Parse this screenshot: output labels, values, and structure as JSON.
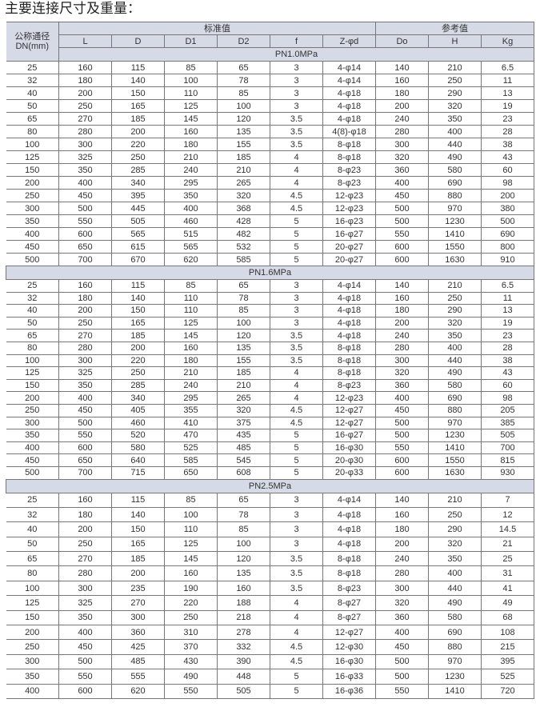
{
  "title": "主要连接尺寸及重量：",
  "header": {
    "dn_label": "公称通径 DN(mm)",
    "group_standard": "标准值",
    "group_reference": "参考值",
    "columns": [
      "L",
      "D",
      "D1",
      "D2",
      "f",
      "Z-φd",
      "Do",
      "H",
      "Kg"
    ]
  },
  "sections": [
    {
      "label": "PN1.0MPa",
      "rows": [
        [
          "25",
          "160",
          "115",
          "85",
          "65",
          "3",
          "4-φ14",
          "140",
          "210",
          "6.5"
        ],
        [
          "32",
          "180",
          "140",
          "100",
          "78",
          "3",
          "4-φ14",
          "160",
          "250",
          "11"
        ],
        [
          "40",
          "200",
          "150",
          "110",
          "85",
          "3",
          "4-φ18",
          "180",
          "290",
          "13"
        ],
        [
          "50",
          "250",
          "165",
          "125",
          "100",
          "3",
          "4-φ18",
          "200",
          "320",
          "19"
        ],
        [
          "65",
          "270",
          "185",
          "145",
          "120",
          "3.5",
          "4-φ18",
          "240",
          "350",
          "23"
        ],
        [
          "80",
          "280",
          "200",
          "160",
          "135",
          "3.5",
          "4(8)-φ18",
          "280",
          "400",
          "28"
        ],
        [
          "100",
          "300",
          "220",
          "180",
          "155",
          "3.5",
          "8-φ18",
          "300",
          "440",
          "38"
        ],
        [
          "125",
          "325",
          "250",
          "210",
          "185",
          "4",
          "8-φ18",
          "320",
          "490",
          "43"
        ],
        [
          "150",
          "350",
          "285",
          "240",
          "210",
          "4",
          "8-φ23",
          "360",
          "580",
          "60"
        ],
        [
          "200",
          "400",
          "340",
          "295",
          "265",
          "4",
          "8-φ23",
          "400",
          "690",
          "98"
        ],
        [
          "250",
          "450",
          "395",
          "350",
          "320",
          "4.5",
          "12-φ23",
          "450",
          "880",
          "200"
        ],
        [
          "300",
          "500",
          "445",
          "400",
          "368",
          "4.5",
          "12-φ23",
          "500",
          "970",
          "380"
        ],
        [
          "350",
          "550",
          "505",
          "460",
          "428",
          "5",
          "16-φ23",
          "500",
          "1230",
          "500"
        ],
        [
          "400",
          "600",
          "565",
          "515",
          "482",
          "5",
          "16-φ27",
          "550",
          "1410",
          "690"
        ],
        [
          "450",
          "650",
          "615",
          "565",
          "532",
          "5",
          "20-φ27",
          "600",
          "1550",
          "800"
        ],
        [
          "500",
          "700",
          "670",
          "620",
          "585",
          "5",
          "20-φ27",
          "600",
          "1630",
          "910"
        ]
      ]
    },
    {
      "label": "PN1.6MPa",
      "rows": [
        [
          "25",
          "160",
          "115",
          "85",
          "65",
          "3",
          "4-φ14",
          "140",
          "210",
          "6.5"
        ],
        [
          "32",
          "180",
          "140",
          "110",
          "78",
          "3",
          "4-φ18",
          "160",
          "250",
          "11"
        ],
        [
          "40",
          "200",
          "150",
          "110",
          "85",
          "3",
          "4-φ18",
          "180",
          "290",
          "13"
        ],
        [
          "50",
          "250",
          "165",
          "125",
          "100",
          "3",
          "4-φ18",
          "200",
          "320",
          "19"
        ],
        [
          "65",
          "270",
          "185",
          "145",
          "120",
          "3.5",
          "4-φ18",
          "240",
          "350",
          "23"
        ],
        [
          "80",
          "280",
          "200",
          "160",
          "135",
          "3.5",
          "8-φ18",
          "280",
          "400",
          "28"
        ],
        [
          "100",
          "300",
          "220",
          "180",
          "155",
          "3.5",
          "8-φ18",
          "300",
          "440",
          "38"
        ],
        [
          "125",
          "325",
          "250",
          "210",
          "185",
          "4",
          "8-φ18",
          "320",
          "490",
          "43"
        ],
        [
          "150",
          "350",
          "285",
          "240",
          "210",
          "4",
          "8-φ23",
          "360",
          "580",
          "60"
        ],
        [
          "200",
          "400",
          "340",
          "295",
          "265",
          "4",
          "12-φ23",
          "400",
          "690",
          "98"
        ],
        [
          "250",
          "450",
          "405",
          "355",
          "320",
          "4.5",
          "12-φ27",
          "450",
          "880",
          "205"
        ],
        [
          "300",
          "500",
          "460",
          "410",
          "375",
          "4.5",
          "12-φ27",
          "500",
          "970",
          "385"
        ],
        [
          "350",
          "550",
          "520",
          "470",
          "435",
          "5",
          "16-φ27",
          "500",
          "1230",
          "505"
        ],
        [
          "400",
          "600",
          "580",
          "525",
          "485",
          "5",
          "16-φ30",
          "550",
          "1410",
          "700"
        ],
        [
          "450",
          "650",
          "640",
          "585",
          "545",
          "5",
          "20-φ30",
          "600",
          "1550",
          "815"
        ],
        [
          "500",
          "700",
          "715",
          "650",
          "608",
          "5",
          "20-φ33",
          "600",
          "1630",
          "930"
        ]
      ]
    },
    {
      "label": "PN2.5MPa",
      "rows": [
        [
          "25",
          "160",
          "115",
          "85",
          "65",
          "3",
          "4-φ14",
          "140",
          "210",
          "7"
        ],
        [
          "32",
          "180",
          "140",
          "100",
          "78",
          "3",
          "4-φ18",
          "160",
          "250",
          "12"
        ],
        [
          "40",
          "200",
          "150",
          "110",
          "85",
          "3",
          "4-φ18",
          "180",
          "290",
          "14.5"
        ],
        [
          "50",
          "250",
          "165",
          "125",
          "100",
          "3",
          "4-φ18",
          "200",
          "320",
          "21"
        ],
        [
          "65",
          "270",
          "185",
          "145",
          "120",
          "3.5",
          "8-φ18",
          "240",
          "350",
          "25"
        ],
        [
          "80",
          "280",
          "200",
          "160",
          "135",
          "3.5",
          "8-φ18",
          "280",
          "400",
          "31"
        ],
        [
          "100",
          "300",
          "235",
          "190",
          "160",
          "3.5",
          "8-φ23",
          "300",
          "440",
          "41"
        ],
        [
          "125",
          "325",
          "270",
          "220",
          "188",
          "4",
          "8-φ27",
          "320",
          "490",
          "49"
        ],
        [
          "150",
          "350",
          "300",
          "250",
          "218",
          "4",
          "8-φ27",
          "360",
          "580",
          "68"
        ],
        [
          "200",
          "400",
          "360",
          "310",
          "278",
          "4",
          "12-φ27",
          "400",
          "690",
          "108"
        ],
        [
          "250",
          "450",
          "425",
          "370",
          "332",
          "4.5",
          "12-φ30",
          "450",
          "880",
          "215"
        ],
        [
          "300",
          "500",
          "485",
          "430",
          "390",
          "4.5",
          "16-φ30",
          "500",
          "970",
          "395"
        ],
        [
          "350",
          "550",
          "555",
          "490",
          "448",
          "5",
          "16-φ33",
          "500",
          "1230",
          "525"
        ],
        [
          "400",
          "600",
          "620",
          "550",
          "505",
          "5",
          "16-φ36",
          "550",
          "1410",
          "720"
        ]
      ]
    }
  ]
}
